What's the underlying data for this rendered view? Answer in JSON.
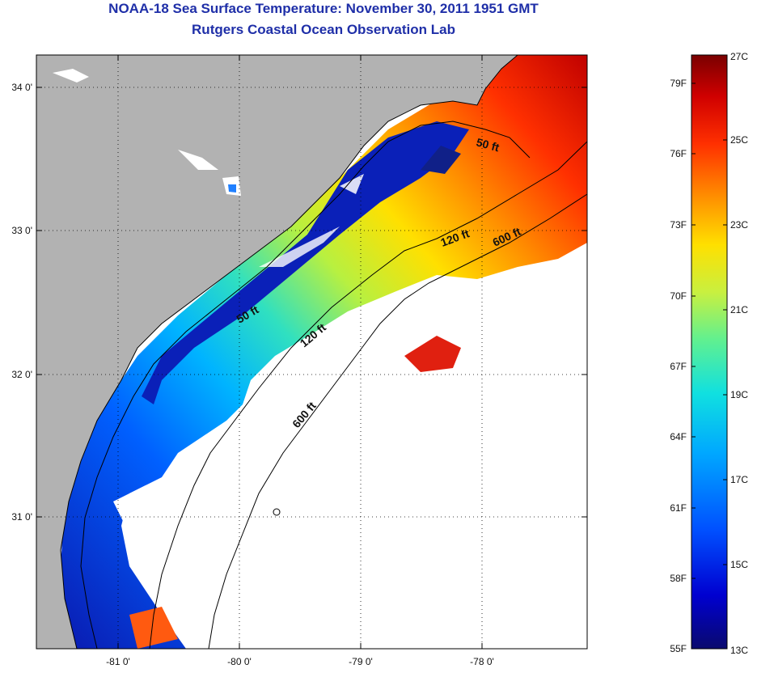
{
  "title": {
    "line1": "NOAA-18 Sea Surface Temperature:  November 30, 2011 1951 GMT",
    "line2": "Rutgers Coastal Ocean Observation Lab"
  },
  "map": {
    "lat_ticks": [
      "34 0'",
      "33 0'",
      "32 0'",
      "31 0'"
    ],
    "lon_ticks": [
      "-81 0'",
      "-80 0'",
      "-79 0'",
      "-78 0'"
    ],
    "contours": [
      {
        "label": "50 ft"
      },
      {
        "label": "120 ft"
      },
      {
        "label": "600 ft"
      },
      {
        "label": "50 ft"
      },
      {
        "label": "120 ft"
      },
      {
        "label": "600 ft"
      }
    ],
    "land_color": "#b2b2b2",
    "cloud_color": "#ffffff"
  },
  "colorbar": {
    "min_c": 13,
    "max_c": 27,
    "fahrenheit_labels": [
      "79F",
      "76F",
      "73F",
      "70F",
      "67F",
      "64F",
      "61F",
      "58F",
      "55F"
    ],
    "celsius_labels": [
      "27C",
      "25C",
      "23C",
      "21C",
      "19C",
      "17C",
      "15C",
      "13C"
    ],
    "colors": [
      "#0a0a6e",
      "#0000d0",
      "#0050ff",
      "#00a8ff",
      "#10e0e0",
      "#60f090",
      "#c8f040",
      "#ffe000",
      "#ff9000",
      "#ff3000",
      "#d00000",
      "#7a0000"
    ]
  }
}
